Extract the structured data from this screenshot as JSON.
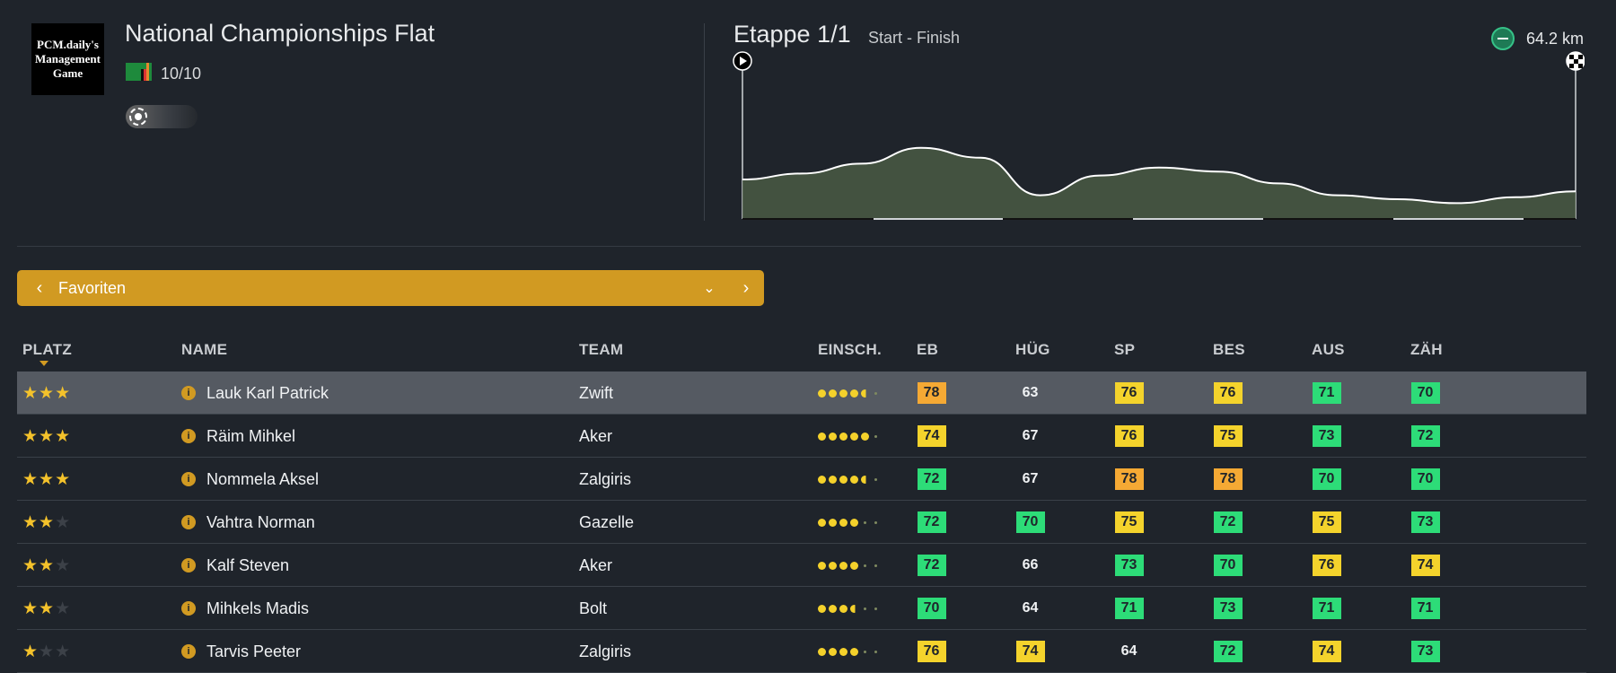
{
  "header": {
    "logo_text": "PCM.daily's Management Game",
    "race_title": "National Championships Flat",
    "race_score": "10/10",
    "weather_icon": "sun-icon"
  },
  "stage": {
    "title": "Etappe 1/1",
    "route": "Start - Finish",
    "distance": "64.2 km",
    "start_icon": "play-icon",
    "finish_icon": "checkered-flag-icon",
    "profile": [
      20,
      23,
      28,
      36,
      31,
      12,
      22,
      26,
      24,
      18,
      12,
      10,
      8,
      11,
      14
    ]
  },
  "selector": {
    "label": "Favoriten"
  },
  "table": {
    "headers": {
      "platz": "PLATZ",
      "name": "NAME",
      "team": "TEAM",
      "einsch": "EINSCH.",
      "eb": "EB",
      "hug": "HÜG",
      "sp": "SP",
      "bes": "BES",
      "aus": "AUS",
      "zah": "ZÄH"
    },
    "colors": {
      "yellow": "#f4d32c",
      "orange": "#f5a934",
      "green": "#2ddc78",
      "accent": "#d19a22"
    },
    "rows": [
      {
        "stars": 3,
        "name": "Lauk Karl Patrick",
        "team": "Zwift",
        "rating": 4.6,
        "selected": true,
        "stats": [
          {
            "v": "78",
            "c": "o"
          },
          {
            "v": "63",
            "c": "n"
          },
          {
            "v": "76",
            "c": "y"
          },
          {
            "v": "76",
            "c": "y"
          },
          {
            "v": "71",
            "c": "g"
          },
          {
            "v": "70",
            "c": "g"
          }
        ]
      },
      {
        "stars": 3,
        "name": "Räim Mihkel",
        "team": "Aker",
        "rating": 5,
        "stats": [
          {
            "v": "74",
            "c": "y"
          },
          {
            "v": "67",
            "c": "n"
          },
          {
            "v": "76",
            "c": "y"
          },
          {
            "v": "75",
            "c": "y"
          },
          {
            "v": "73",
            "c": "g"
          },
          {
            "v": "72",
            "c": "g"
          }
        ]
      },
      {
        "stars": 3,
        "name": "Nommela Aksel",
        "team": "Zalgiris",
        "rating": 4.6,
        "stats": [
          {
            "v": "72",
            "c": "g"
          },
          {
            "v": "67",
            "c": "n"
          },
          {
            "v": "78",
            "c": "o"
          },
          {
            "v": "78",
            "c": "o"
          },
          {
            "v": "70",
            "c": "g"
          },
          {
            "v": "70",
            "c": "g"
          }
        ]
      },
      {
        "stars": 2,
        "name": "Vahtra Norman",
        "team": "Gazelle",
        "rating": 4,
        "stats": [
          {
            "v": "72",
            "c": "g"
          },
          {
            "v": "70",
            "c": "g"
          },
          {
            "v": "75",
            "c": "y"
          },
          {
            "v": "72",
            "c": "g"
          },
          {
            "v": "75",
            "c": "y"
          },
          {
            "v": "73",
            "c": "g"
          }
        ]
      },
      {
        "stars": 2,
        "name": "Kalf Steven",
        "team": "Aker",
        "rating": 4,
        "stats": [
          {
            "v": "72",
            "c": "g"
          },
          {
            "v": "66",
            "c": "n"
          },
          {
            "v": "73",
            "c": "g"
          },
          {
            "v": "70",
            "c": "g"
          },
          {
            "v": "76",
            "c": "y"
          },
          {
            "v": "74",
            "c": "y"
          }
        ]
      },
      {
        "stars": 2,
        "name": "Mihkels Madis",
        "team": "Bolt",
        "rating": 3.6,
        "stats": [
          {
            "v": "70",
            "c": "g"
          },
          {
            "v": "64",
            "c": "n"
          },
          {
            "v": "71",
            "c": "g"
          },
          {
            "v": "73",
            "c": "g"
          },
          {
            "v": "71",
            "c": "g"
          },
          {
            "v": "71",
            "c": "g"
          }
        ]
      },
      {
        "stars": 1,
        "name": "Tarvis Peeter",
        "team": "Zalgiris",
        "rating": 4,
        "stats": [
          {
            "v": "76",
            "c": "y"
          },
          {
            "v": "74",
            "c": "y"
          },
          {
            "v": "64",
            "c": "n"
          },
          {
            "v": "72",
            "c": "g"
          },
          {
            "v": "74",
            "c": "y"
          },
          {
            "v": "73",
            "c": "g"
          }
        ]
      }
    ]
  }
}
